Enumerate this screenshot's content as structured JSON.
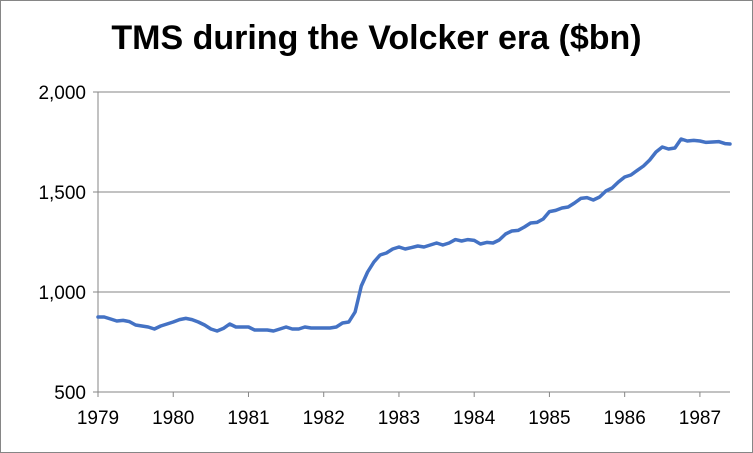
{
  "chart_data": {
    "type": "line",
    "title": "TMS during the Volcker era ($bn)",
    "xlabel": "",
    "ylabel": "",
    "xlim": [
      1979,
      1987.4
    ],
    "ylim": [
      500,
      2000
    ],
    "yticks": [
      500,
      1000,
      1500,
      2000
    ],
    "ytick_labels": [
      "500",
      "1,000",
      "1,500",
      "2,000"
    ],
    "xticks": [
      1979,
      1980,
      1981,
      1982,
      1983,
      1984,
      1985,
      1986,
      1987
    ],
    "xtick_labels": [
      "1979",
      "1980",
      "1981",
      "1982",
      "1983",
      "1984",
      "1985",
      "1986",
      "1987"
    ],
    "grid": "horizontal",
    "legend": "none",
    "colors": {
      "line": "#4472c4",
      "grid": "#868686",
      "axis": "#868686"
    },
    "series": [
      {
        "x": [
          1979.0,
          1979.083,
          1979.167,
          1979.25,
          1979.333,
          1979.417,
          1979.5,
          1979.583,
          1979.667,
          1979.75,
          1979.833,
          1979.917,
          1980.0,
          1980.083,
          1980.167,
          1980.25,
          1980.333,
          1980.417,
          1980.5,
          1980.583,
          1980.667,
          1980.75,
          1980.833,
          1980.917,
          1981.0,
          1981.083,
          1981.167,
          1981.25,
          1981.333,
          1981.417,
          1981.5,
          1981.583,
          1981.667,
          1981.75,
          1981.833,
          1981.917,
          1982.0,
          1982.083,
          1982.167,
          1982.25,
          1982.333,
          1982.417,
          1982.5,
          1982.583,
          1982.667,
          1982.75,
          1982.833,
          1982.917,
          1983.0,
          1983.083,
          1983.167,
          1983.25,
          1983.333,
          1983.417,
          1983.5,
          1983.583,
          1983.667,
          1983.75,
          1983.833,
          1983.917,
          1984.0,
          1984.083,
          1984.167,
          1984.25,
          1984.333,
          1984.417,
          1984.5,
          1984.583,
          1984.667,
          1984.75,
          1984.833,
          1984.917,
          1985.0,
          1985.083,
          1985.167,
          1985.25,
          1985.333,
          1985.417,
          1985.5,
          1985.583,
          1985.667,
          1985.75,
          1985.833,
          1985.917,
          1986.0,
          1986.083,
          1986.167,
          1986.25,
          1986.333,
          1986.417,
          1986.5,
          1986.583,
          1986.667,
          1986.75,
          1986.833,
          1986.917,
          1987.0,
          1987.083,
          1987.167,
          1987.25,
          1987.333,
          1987.4
        ],
        "values": [
          875,
          875,
          865,
          855,
          858,
          852,
          835,
          830,
          825,
          815,
          830,
          840,
          850,
          862,
          868,
          862,
          850,
          835,
          815,
          805,
          818,
          840,
          825,
          825,
          825,
          810,
          810,
          810,
          805,
          815,
          825,
          815,
          815,
          825,
          820,
          820,
          820,
          820,
          825,
          845,
          850,
          900,
          1030,
          1100,
          1150,
          1185,
          1195,
          1215,
          1225,
          1215,
          1222,
          1230,
          1225,
          1235,
          1245,
          1235,
          1245,
          1262,
          1255,
          1262,
          1258,
          1240,
          1248,
          1245,
          1260,
          1290,
          1305,
          1308,
          1325,
          1345,
          1348,
          1365,
          1402,
          1408,
          1420,
          1425,
          1445,
          1468,
          1472,
          1460,
          1475,
          1505,
          1520,
          1550,
          1575,
          1585,
          1608,
          1630,
          1660,
          1700,
          1725,
          1715,
          1720,
          1765,
          1755,
          1758,
          1755,
          1748,
          1750,
          1752,
          1742,
          1740
        ]
      }
    ]
  }
}
